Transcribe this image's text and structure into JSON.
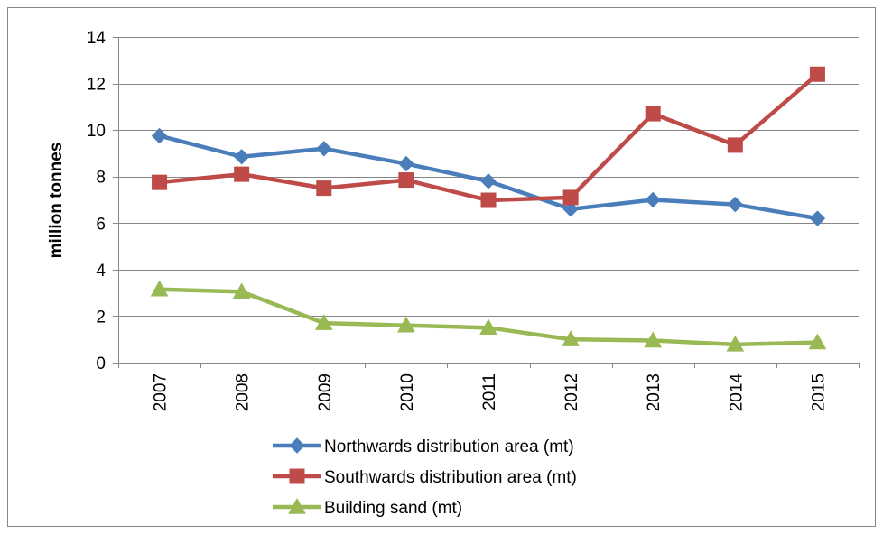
{
  "chart_data": {
    "type": "line",
    "title": "",
    "xlabel": "",
    "ylabel": "million tonnes",
    "categories": [
      "2007",
      "2008",
      "2009",
      "2010",
      "2011",
      "2012",
      "2013",
      "2014",
      "2015"
    ],
    "ylim": [
      0,
      14
    ],
    "yticks": [
      "0",
      "2",
      "4",
      "6",
      "8",
      "10",
      "12",
      "14"
    ],
    "grid": "horizontal",
    "legend_position": "bottom",
    "series": [
      {
        "name": "Northwards distribution area (mt)",
        "color": "#4a7ebb",
        "marker": "diamond",
        "values": [
          9.75,
          8.85,
          9.2,
          8.55,
          7.8,
          6.6,
          7.0,
          6.8,
          6.2
        ]
      },
      {
        "name": "Southwards distribution area (mt)",
        "color": "#be4b48",
        "marker": "square",
        "values": [
          7.75,
          8.1,
          7.5,
          7.85,
          6.98,
          7.1,
          10.7,
          9.35,
          12.4
        ]
      },
      {
        "name": "Building sand (mt)",
        "color": "#98b954",
        "marker": "triangle",
        "values": [
          3.15,
          3.05,
          1.7,
          1.6,
          1.5,
          1.0,
          0.95,
          0.78,
          0.87
        ]
      }
    ]
  }
}
